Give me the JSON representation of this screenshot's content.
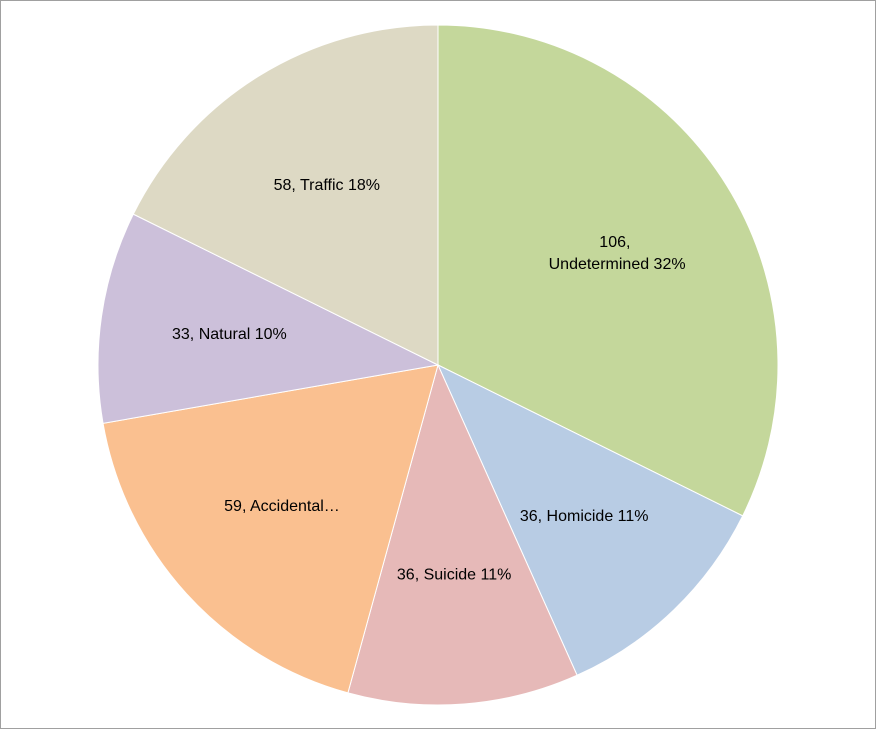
{
  "chart_data": {
    "type": "pie",
    "values": [
      106,
      36,
      36,
      59,
      33,
      58
    ],
    "value_labels": [
      "106, Undetermined 32%",
      "36, Homicide 11%",
      "36, Suicide 11%",
      "59, Accidental…",
      "33, Natural 10%",
      "58, Traffic 18%"
    ],
    "colors": [
      "#c4d79b",
      "#b8cce4",
      "#e6b9b8",
      "#fac090",
      "#ccc0da",
      "#ddd9c4"
    ]
  }
}
